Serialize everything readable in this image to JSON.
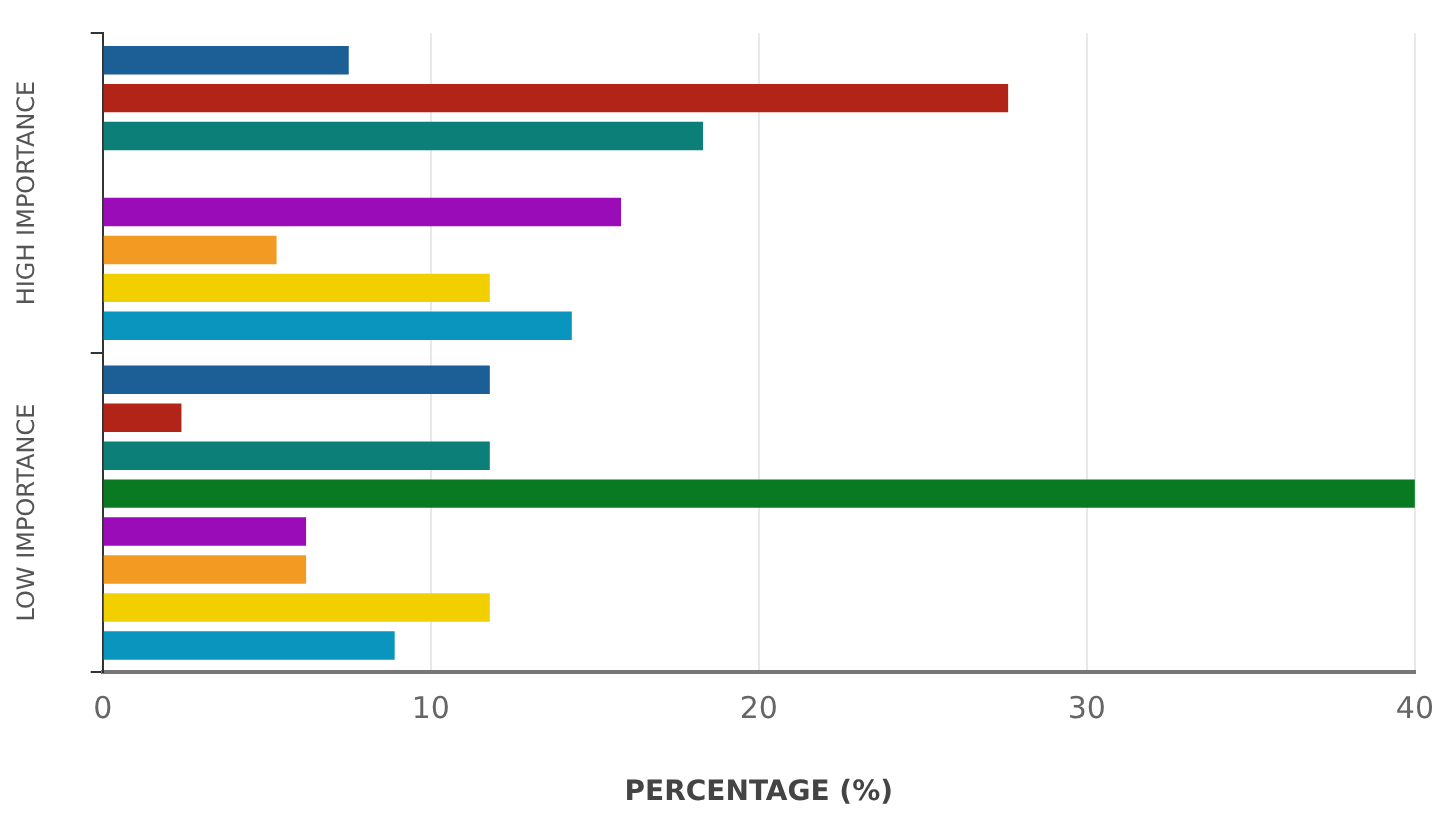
{
  "chart_data": {
    "type": "bar",
    "orientation": "horizontal",
    "xlabel": "PERCENTAGE (%)",
    "categories": [
      "HIGH IMPORTANCE",
      "LOW IMPORTANCE"
    ],
    "series": [
      {
        "color": "#1b5f96",
        "values": [
          7.5,
          11.8
        ]
      },
      {
        "color": "#b22418",
        "values": [
          27.6,
          2.4
        ]
      },
      {
        "color": "#0b7f78",
        "values": [
          18.3,
          11.8
        ]
      },
      {
        "color": "#0a7a22",
        "values": [
          0,
          40
        ]
      },
      {
        "color": "#9a0cb8",
        "values": [
          15.8,
          6.2
        ]
      },
      {
        "color": "#f39a22",
        "values": [
          5.3,
          6.2
        ]
      },
      {
        "color": "#f2d000",
        "values": [
          11.8,
          11.8
        ]
      },
      {
        "color": "#0995be",
        "values": [
          14.3,
          8.9
        ]
      }
    ],
    "xlim": [
      0,
      40
    ],
    "xticks": [
      0,
      10,
      20,
      30,
      40
    ],
    "grid": "x",
    "legend": false
  }
}
